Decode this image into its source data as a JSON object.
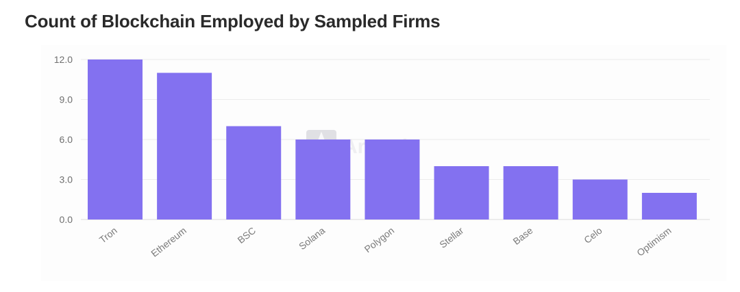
{
  "chart_data": {
    "type": "bar",
    "title": "Count of Blockchain Employed by Sampled Firms",
    "categories": [
      "Tron",
      "Ethereum",
      "BSC",
      "Solana",
      "Polygon",
      "Stellar",
      "Base",
      "Celo",
      "Optimism"
    ],
    "values": [
      12,
      11,
      7,
      6,
      6,
      4,
      4,
      3,
      2
    ],
    "y_ticks": [
      "0.0",
      "3.0",
      "6.0",
      "9.0",
      "12.0"
    ],
    "ylim": [
      0,
      12
    ],
    "xlabel": "",
    "ylabel": "",
    "grid": true,
    "bar_color": "#8371f0",
    "watermark": "Artemis"
  }
}
